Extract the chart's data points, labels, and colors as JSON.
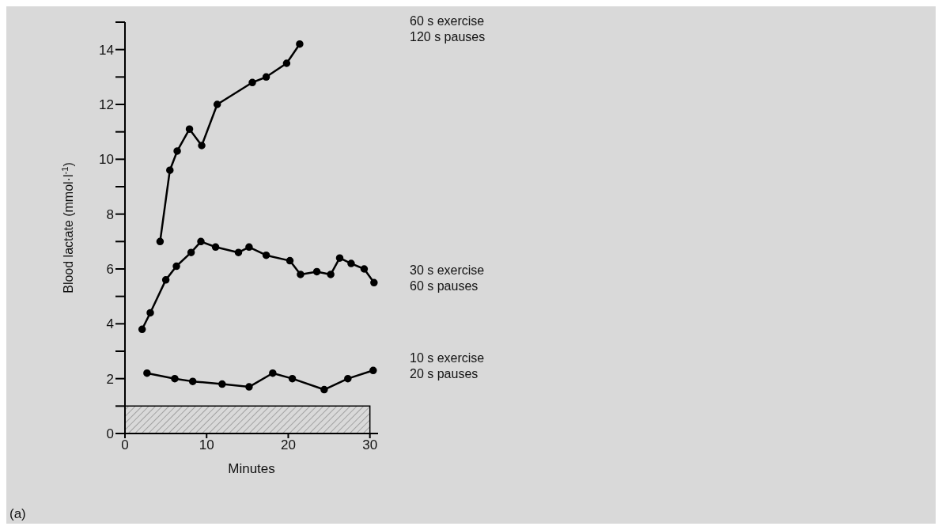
{
  "chart_data": {
    "type": "line",
    "xlabel": "Minutes",
    "ylabel": "Blood lactate (mmol·l$^{-1}$)",
    "xlim": [
      0,
      31
    ],
    "xticks": [
      0,
      10,
      20,
      30
    ],
    "ylim": [
      0,
      15
    ],
    "yticks": [
      0,
      {
        "value": 1,
        "label": null
      },
      2,
      {
        "value": 3,
        "label": null
      },
      4,
      {
        "value": 5,
        "label": null
      },
      6,
      {
        "value": 7,
        "label": null
      },
      8,
      {
        "value": 9,
        "label": null
      },
      10,
      {
        "value": 11,
        "label": null
      },
      12,
      {
        "value": 13,
        "label": null
      },
      14,
      {
        "value": 15,
        "label": null
      }
    ],
    "marker": "circle",
    "line_style": "solid",
    "series": [
      {
        "name": "60 s exercise\n120 s pauses",
        "color": "#000000",
        "x": [
          4.3,
          5.5,
          6.4,
          7.9,
          9.4,
          11.3,
          15.6,
          17.3,
          19.8,
          21.4
        ],
        "values": [
          7.0,
          9.6,
          10.3,
          11.1,
          10.5,
          12.0,
          12.8,
          13.0,
          13.5,
          14.2
        ]
      },
      {
        "name": "30 s exercise\n60 s pauses",
        "color": "#000000",
        "x": [
          2.1,
          3.1,
          5.0,
          6.3,
          8.1,
          9.3,
          11.1,
          13.9,
          15.2,
          17.3,
          20.2,
          21.5,
          23.5,
          25.2,
          26.3,
          27.7,
          29.3,
          30.5
        ],
        "values": [
          3.8,
          4.4,
          5.6,
          6.1,
          6.6,
          7.0,
          6.8,
          6.6,
          6.8,
          6.5,
          6.3,
          5.8,
          5.9,
          5.8,
          6.4,
          6.2,
          6.0,
          5.5
        ]
      },
      {
        "name": "10 s exercise\n20 s pauses",
        "color": "#000000",
        "x": [
          2.7,
          6.1,
          8.3,
          11.9,
          15.2,
          18.1,
          20.5,
          24.4,
          27.3,
          30.4
        ],
        "values": [
          2.2,
          2.0,
          1.9,
          1.8,
          1.7,
          2.2,
          2.0,
          1.6,
          2.0,
          2.3
        ]
      }
    ],
    "bands": [
      {
        "axis": "y",
        "from": 0,
        "to": 1
      }
    ],
    "annotations": [
      "(a)"
    ]
  }
}
